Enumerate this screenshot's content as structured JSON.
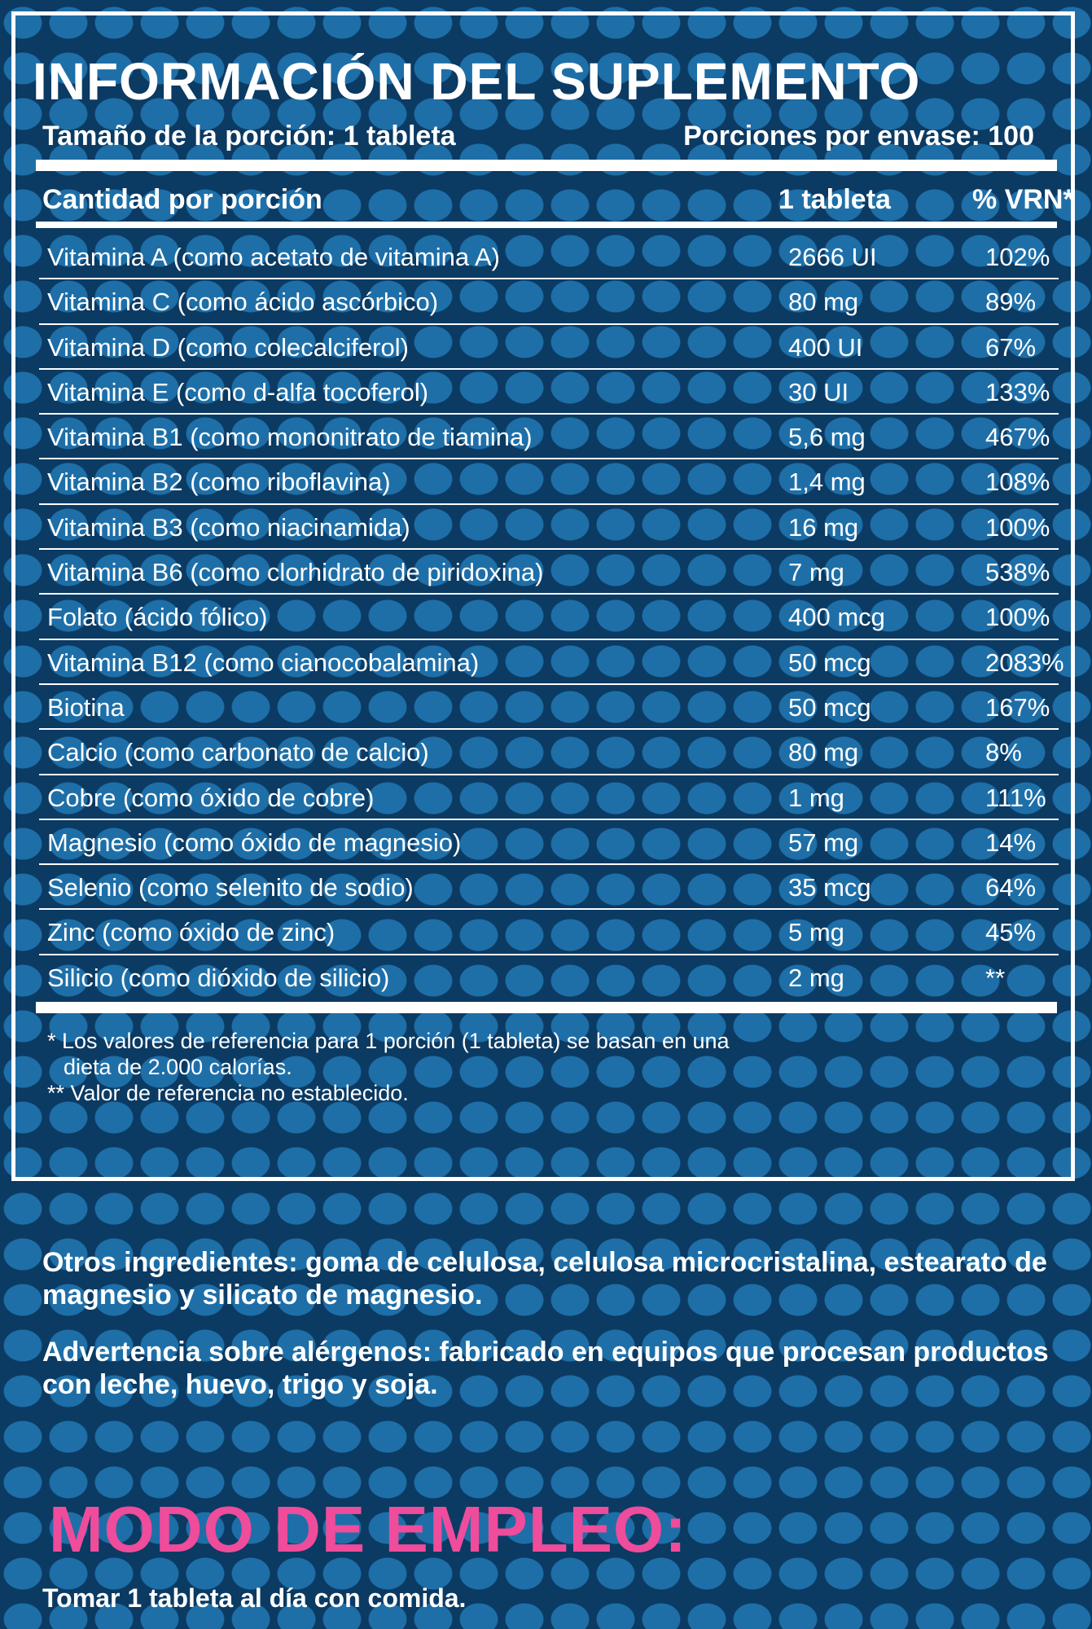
{
  "title": "INFORMACIÓN DEL SUPLEMENTO",
  "serving_size": "Tamaño de la porción: 1 tableta",
  "servings_per_container": "Porciones por envase: 100",
  "table": {
    "headers": [
      "Cantidad por porción",
      "1 tableta",
      "% VRN*"
    ],
    "rows": [
      {
        "name": "Vitamina A (como acetato de vitamina A)",
        "amount": "2666 UI",
        "pct": "102%"
      },
      {
        "name": "Vitamina C (como ácido ascórbico)",
        "amount": "80 mg",
        "pct": "89%"
      },
      {
        "name": "Vitamina D (como colecalciferol)",
        "amount": "400 UI",
        "pct": "67%"
      },
      {
        "name": "Vitamina E (como d-alfa tocoferol)",
        "amount": "30 UI",
        "pct": "133%"
      },
      {
        "name": "Vitamina B1 (como mononitrato de tiamina)",
        "amount": "5,6 mg",
        "pct": "467%"
      },
      {
        "name": "Vitamina B2 (como riboflavina)",
        "amount": "1,4 mg",
        "pct": "108%"
      },
      {
        "name": "Vitamina B3 (como niacinamida)",
        "amount": "16 mg",
        "pct": "100%"
      },
      {
        "name": "Vitamina B6 (como clorhidrato de piridoxina)",
        "amount": "7 mg",
        "pct": "538%"
      },
      {
        "name": "Folato (ácido fólico)",
        "amount": "400 mcg",
        "pct": "100%"
      },
      {
        "name": "Vitamina B12 (como cianocobalamina)",
        "amount": "50 mcg",
        "pct": "2083%"
      },
      {
        "name": "Biotina",
        "amount": "50 mcg",
        "pct": "167%"
      },
      {
        "name": "Calcio (como carbonato de calcio)",
        "amount": "80 mg",
        "pct": "8%"
      },
      {
        "name": "Cobre (como óxido de cobre)",
        "amount": "1 mg",
        "pct": "111%"
      },
      {
        "name": "Magnesio (como óxido de magnesio)",
        "amount": "57 mg",
        "pct": "14%"
      },
      {
        "name": "Selenio (como selenito de sodio)",
        "amount": "35 mcg",
        "pct": "64%"
      },
      {
        "name": "Zinc (como óxido de zinc)",
        "amount": "5 mg",
        "pct": "45%"
      },
      {
        "name": "Silicio (como dióxido de silicio)",
        "amount": "2 mg",
        "pct": "**"
      }
    ]
  },
  "notes": {
    "footnote1_line1": "* Los valores de referencia para 1 porción (1 tableta) se basan en una",
    "footnote1_line2": "dieta de 2.000 calorías.",
    "footnote2": "** Valor de referencia no establecido."
  },
  "other_ingredients": "Otros ingredientes: goma de celulosa, celulosa microcristalina, estearato de magnesio y silicato de magnesio.",
  "allergen_warning": "Advertencia sobre alérgenos: fabricado en equipos que procesan productos con leche, huevo, trigo y soja.",
  "usage": {
    "heading": "MODO DE EMPLEO:",
    "instruction": "Tomar 1 tableta al día con comida."
  },
  "colors": {
    "background": "#0b3a63",
    "dots": "#1e6fa8",
    "text": "#ffffff",
    "accent_pink": "#ef4c9b"
  }
}
